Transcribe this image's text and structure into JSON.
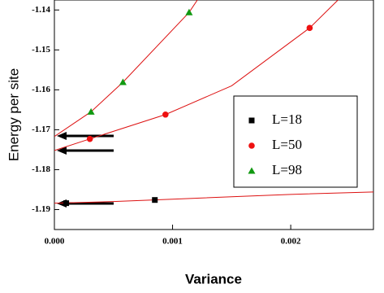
{
  "chart_data": {
    "type": "scatter",
    "x_label": "Variance",
    "y_label": "Energy per site",
    "xlim": [
      0,
      0.0027
    ],
    "ylim": [
      -1.195,
      -1.1375
    ],
    "xticks": [
      {
        "value": 0,
        "label": "0.000"
      },
      {
        "value": 0.001,
        "label": "0.001"
      },
      {
        "value": 0.002,
        "label": "0.002"
      }
    ],
    "yticks": [
      -1.19,
      -1.18,
      -1.17,
      -1.16,
      -1.15,
      -1.14
    ],
    "series": [
      {
        "name": "L=18",
        "color": "#000000",
        "marker": "square",
        "x": [
          0.0001,
          0.00085
        ],
        "values": [
          -1.1884,
          -1.1876
        ]
      },
      {
        "name": "L=50",
        "color": "#ee1111",
        "marker": "circle",
        "x": [
          0.0003,
          0.00094,
          0.00216
        ],
        "values": [
          -1.1723,
          -1.1662,
          -1.1445
        ]
      },
      {
        "name": "L=98",
        "color": "#119911",
        "marker": "triangle",
        "x": [
          0.00031,
          0.00058,
          0.00114
        ],
        "values": [
          -1.1655,
          -1.1581,
          -1.1406
        ]
      }
    ],
    "lines": [
      {
        "color": "#dd1111",
        "x": [
          0,
          0.0005,
          0.001,
          0.0015,
          0.002,
          0.0027
        ],
        "values": [
          -1.1884,
          -1.188,
          -1.1874,
          -1.1868,
          -1.1862,
          -1.1856
        ]
      },
      {
        "color": "#dd1111",
        "x": [
          0,
          0.0003,
          0.00094,
          0.0015,
          0.00216,
          0.0024
        ],
        "values": [
          -1.1752,
          -1.1723,
          -1.1662,
          -1.159,
          -1.1445,
          -1.1375
        ]
      },
      {
        "color": "#dd1111",
        "x": [
          0,
          0.00031,
          0.00058,
          0.00114,
          0.00121
        ],
        "values": [
          -1.1717,
          -1.1655,
          -1.1581,
          -1.1406,
          -1.1375
        ]
      }
    ]
  }
}
